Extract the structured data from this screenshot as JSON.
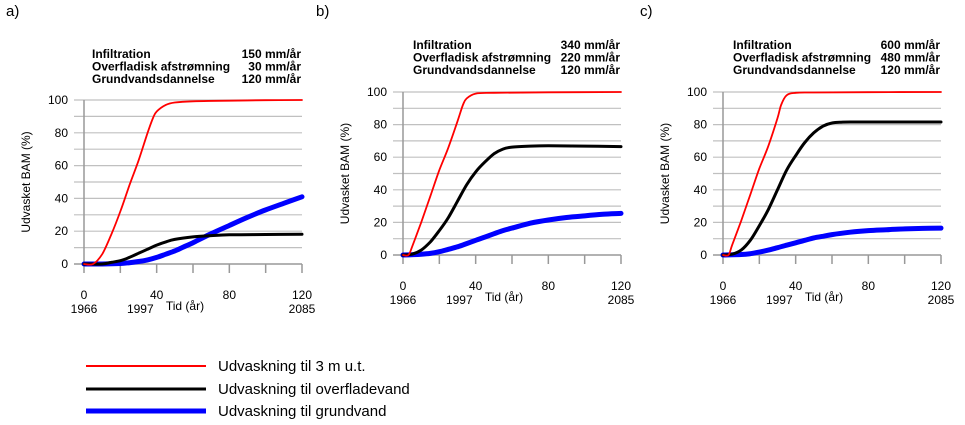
{
  "figure": {
    "legend": [
      {
        "label": "Udvaskning til 3 m u.t.",
        "color": "#ff0000",
        "weight": "thin"
      },
      {
        "label": "Udvaskning til overfladevand",
        "color": "#000000",
        "weight": "medium"
      },
      {
        "label": "Udvaskning til grundvand",
        "color": "#0000ff",
        "weight": "thick"
      }
    ],
    "grid_color": "#c0c0c0"
  },
  "chart_data": [
    {
      "type": "line",
      "panel": "a)",
      "info": [
        {
          "label": "Infiltration",
          "value": "150 mm/år"
        },
        {
          "label": "Overfladisk afstrømning",
          "value": "30 mm/år"
        },
        {
          "label": "Grundvandsdannelse",
          "value": "120 mm/år"
        }
      ],
      "xlabel": "Tid (år)",
      "ylabel": "Udvasket BAM (%)",
      "xlim": [
        0,
        120
      ],
      "ylim": [
        0,
        100
      ],
      "xticks": [
        0,
        40,
        80,
        120
      ],
      "xminor": [
        0,
        20,
        40,
        60,
        80,
        100,
        120
      ],
      "yticks": [
        0,
        20,
        40,
        60,
        80,
        100
      ],
      "ygrid": [
        0,
        10,
        20,
        30,
        40,
        50,
        60,
        70,
        80,
        90,
        100
      ],
      "year_labels": [
        {
          "x": 0,
          "label": "1966"
        },
        {
          "x": 31,
          "label": "1997"
        },
        {
          "x": 120,
          "label": "2085"
        }
      ],
      "grid": true,
      "series": [
        {
          "name": "Udvaskning til 3 m u.t.",
          "x": [
            0,
            5,
            10,
            15,
            20,
            25,
            30,
            35,
            38,
            40,
            45,
            50,
            60,
            80,
            100,
            120
          ],
          "y": [
            0,
            0,
            6,
            18,
            32,
            48,
            63,
            80,
            89,
            93,
            97,
            98.5,
            99.2,
            99.6,
            99.9,
            100
          ]
        },
        {
          "name": "Udvaskning til overfladevand",
          "x": [
            0,
            10,
            15,
            20,
            25,
            30,
            35,
            40,
            45,
            50,
            60,
            70,
            80,
            100,
            120
          ],
          "y": [
            0,
            0,
            1,
            2,
            4,
            6.5,
            9,
            11.5,
            13.5,
            15,
            16.5,
            17.3,
            17.8,
            18,
            18.2
          ]
        },
        {
          "name": "Udvaskning til grundvand",
          "x": [
            0,
            10,
            20,
            25,
            30,
            35,
            40,
            45,
            50,
            55,
            60,
            70,
            80,
            90,
            100,
            110,
            120
          ],
          "y": [
            0,
            0,
            0.3,
            0.8,
            1.5,
            2.5,
            4,
            6,
            8,
            10.5,
            13,
            18.5,
            23.5,
            28.5,
            33,
            37,
            41
          ]
        }
      ]
    },
    {
      "type": "line",
      "panel": "b)",
      "info": [
        {
          "label": "Infiltration",
          "value": "340 mm/år"
        },
        {
          "label": "Overfladisk afstrømning",
          "value": "220 mm/år"
        },
        {
          "label": "Grundvandsdannelse",
          "value": "120 mm/år"
        }
      ],
      "xlabel": "Tid (år)",
      "ylabel": "Udvasket BAM (%)",
      "xlim": [
        0,
        120
      ],
      "ylim": [
        0,
        100
      ],
      "xticks": [
        0,
        40,
        80,
        120
      ],
      "xminor": [
        0,
        20,
        40,
        60,
        80,
        100,
        120
      ],
      "yticks": [
        0,
        20,
        40,
        60,
        80,
        100
      ],
      "ygrid": [
        0,
        10,
        20,
        30,
        40,
        50,
        60,
        70,
        80,
        90,
        100
      ],
      "year_labels": [
        {
          "x": 0,
          "label": "1966"
        },
        {
          "x": 31,
          "label": "1997"
        },
        {
          "x": 120,
          "label": "2085"
        }
      ],
      "grid": true,
      "series": [
        {
          "name": "Udvaskning til 3 m u.t.",
          "x": [
            0,
            3,
            5,
            10,
            15,
            20,
            25,
            30,
            33,
            35,
            40,
            50,
            80,
            120
          ],
          "y": [
            0,
            0,
            5,
            20,
            36,
            52,
            66,
            82,
            92,
            96,
            99,
            99.5,
            99.8,
            100
          ]
        },
        {
          "name": "Udvaskning til overfladevand",
          "x": [
            0,
            5,
            10,
            15,
            20,
            25,
            30,
            35,
            40,
            45,
            50,
            55,
            60,
            70,
            80,
            100,
            120
          ],
          "y": [
            0,
            0.5,
            3,
            8,
            15,
            23,
            33,
            43,
            51,
            57,
            62,
            65,
            66.2,
            66.8,
            67,
            66.8,
            66.5
          ]
        },
        {
          "name": "Udvaskning til grundvand",
          "x": [
            0,
            10,
            15,
            20,
            25,
            30,
            35,
            40,
            45,
            50,
            55,
            60,
            70,
            80,
            90,
            100,
            110,
            120
          ],
          "y": [
            0,
            0.5,
            1,
            2,
            3.5,
            5,
            7,
            9,
            11,
            13,
            15,
            16.5,
            19.5,
            21.5,
            23,
            24,
            25,
            25.5
          ]
        }
      ]
    },
    {
      "type": "line",
      "panel": "c)",
      "info": [
        {
          "label": "Infiltration",
          "value": "600 mm/år"
        },
        {
          "label": "Overfladisk afstrømning",
          "value": "480 mm/år"
        },
        {
          "label": "Grundvandsdannelse",
          "value": "120 mm/år"
        }
      ],
      "xlabel": "Tid (år)",
      "ylabel": "Udvasket BAM (%)",
      "xlim": [
        0,
        120
      ],
      "ylim": [
        0,
        100
      ],
      "xticks": [
        0,
        40,
        80,
        120
      ],
      "xminor": [
        0,
        20,
        40,
        60,
        80,
        100,
        120
      ],
      "yticks": [
        0,
        20,
        40,
        60,
        80,
        100
      ],
      "ygrid": [
        0,
        10,
        20,
        30,
        40,
        50,
        60,
        70,
        80,
        90,
        100
      ],
      "year_labels": [
        {
          "x": 0,
          "label": "1966"
        },
        {
          "x": 31,
          "label": "1997"
        },
        {
          "x": 120,
          "label": "2085"
        }
      ],
      "grid": true,
      "series": [
        {
          "name": "Udvaskning til 3 m u.t.",
          "x": [
            0,
            3,
            5,
            10,
            15,
            20,
            25,
            30,
            32,
            35,
            40,
            50,
            80,
            120
          ],
          "y": [
            0,
            0,
            6,
            21,
            37,
            53,
            67,
            84,
            92,
            98,
            99.5,
            99.7,
            99.9,
            100
          ]
        },
        {
          "name": "Udvaskning til overfladevand",
          "x": [
            0,
            5,
            10,
            15,
            20,
            25,
            30,
            35,
            40,
            45,
            50,
            55,
            60,
            65,
            70,
            80,
            100,
            120
          ],
          "y": [
            0,
            0.5,
            3,
            9,
            18,
            28,
            40,
            52,
            61,
            69,
            75,
            79,
            81,
            81.5,
            81.6,
            81.6,
            81.6,
            81.6
          ]
        },
        {
          "name": "Udvaskning til grundvand",
          "x": [
            0,
            10,
            15,
            20,
            25,
            30,
            35,
            40,
            45,
            50,
            55,
            60,
            70,
            80,
            90,
            100,
            110,
            120
          ],
          "y": [
            0,
            0.3,
            0.8,
            1.8,
            3,
            4.5,
            6,
            7.5,
            9,
            10.5,
            11.5,
            12.5,
            14,
            15,
            15.5,
            16,
            16.3,
            16.5
          ]
        }
      ]
    }
  ]
}
